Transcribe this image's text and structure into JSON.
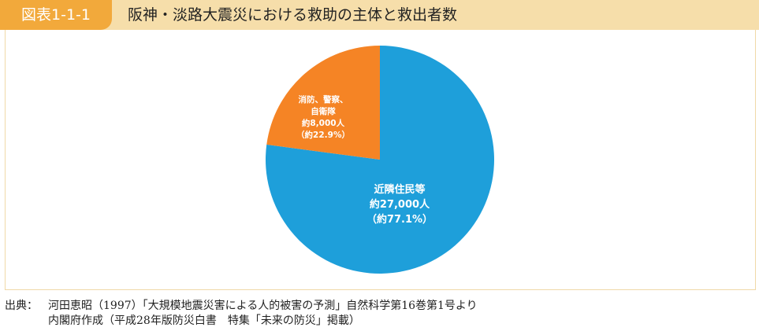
{
  "header": {
    "figure_label": "図表1-1-1",
    "title": "阪神・淡路大震災における救助の主体と救出者数"
  },
  "chart_data": {
    "type": "pie",
    "title": "",
    "slices": [
      {
        "label_lines": [
          "近隣住民等",
          "約27,000人",
          "（約77.1%）"
        ],
        "value": 77.1,
        "color": "#1e9fda"
      },
      {
        "label_lines": [
          "消防、警察、",
          "自衛隊",
          "約8,000人",
          "（約22.9%）"
        ],
        "value": 22.9,
        "color": "#f58425"
      }
    ]
  },
  "source": {
    "prefix": "出典：",
    "line1": "河田恵昭（1997）「大規模地震災害による人的被害の予測」自然科学第16巻第1号より",
    "line2": "内閣府作成（平成28年版防災白書　特集「未来の防災」掲載）"
  }
}
